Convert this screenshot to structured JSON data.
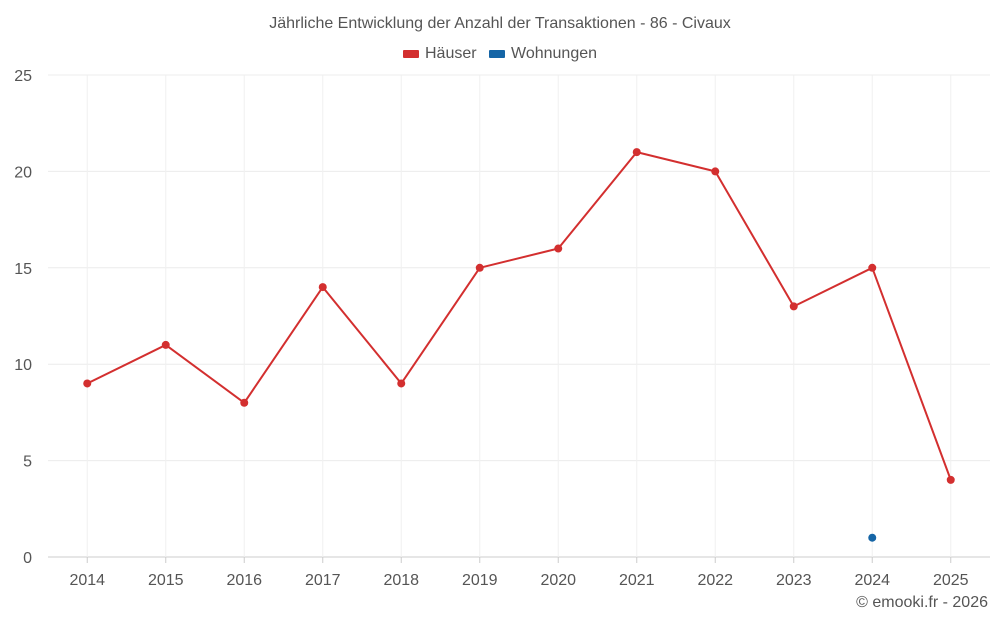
{
  "chart_data": {
    "type": "line",
    "title": "Jährliche Entwicklung der Anzahl der Transaktionen - 86 - Civaux",
    "categories": [
      "2014",
      "2015",
      "2016",
      "2017",
      "2018",
      "2019",
      "2020",
      "2021",
      "2022",
      "2023",
      "2024",
      "2025"
    ],
    "series": [
      {
        "name": "Häuser",
        "color": "#d32f2f",
        "values": [
          9,
          11,
          8,
          14,
          9,
          15,
          16,
          21,
          20,
          13,
          15,
          4
        ]
      },
      {
        "name": "Wohnungen",
        "color": "#1565a6",
        "values": [
          null,
          null,
          null,
          null,
          null,
          null,
          null,
          null,
          null,
          null,
          1,
          null
        ]
      }
    ],
    "ylim": [
      0,
      25
    ],
    "yticks": [
      0,
      5,
      10,
      15,
      20,
      25
    ],
    "xlabel": "",
    "ylabel": "",
    "grid": true,
    "legend_position": "top-center"
  },
  "credit": "© emooki.fr - 2026"
}
